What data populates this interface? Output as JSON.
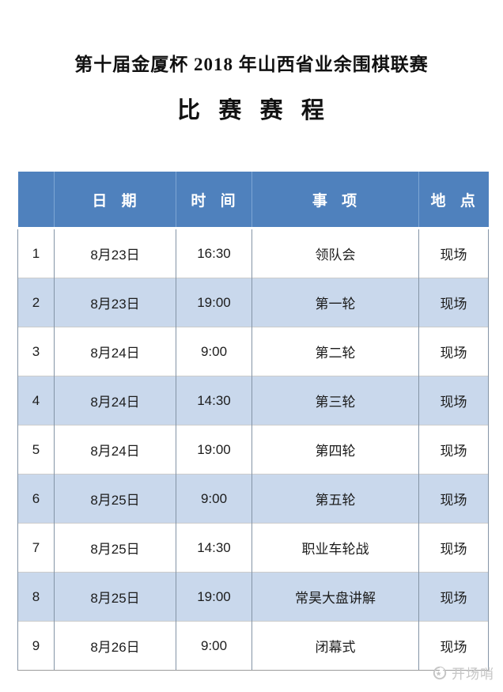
{
  "page": {
    "title": "第十届金厦杯 2018 年山西省业余围棋联赛",
    "subtitle": "比 赛 赛 程"
  },
  "table": {
    "headers": [
      "",
      "日 期",
      "时 间",
      "事 项",
      "地 点"
    ],
    "rows": [
      {
        "no": "1",
        "date": "8月23日",
        "time": "16:30",
        "event": "领队会",
        "location": "现场"
      },
      {
        "no": "2",
        "date": "8月23日",
        "time": "19:00",
        "event": "第一轮",
        "location": "现场"
      },
      {
        "no": "3",
        "date": "8月24日",
        "time": "9:00",
        "event": "第二轮",
        "location": "现场"
      },
      {
        "no": "4",
        "date": "8月24日",
        "time": "14:30",
        "event": "第三轮",
        "location": "现场"
      },
      {
        "no": "5",
        "date": "8月24日",
        "time": "19:00",
        "event": "第四轮",
        "location": "现场"
      },
      {
        "no": "6",
        "date": "8月25日",
        "time": "9:00",
        "event": "第五轮",
        "location": "现场"
      },
      {
        "no": "7",
        "date": "8月25日",
        "time": "14:30",
        "event": "职业车轮战",
        "location": "现场"
      },
      {
        "no": "8",
        "date": "8月25日",
        "time": "19:00",
        "event": "常昊大盘讲解",
        "location": "现场"
      },
      {
        "no": "9",
        "date": "8月26日",
        "time": "9:00",
        "event": "闭幕式",
        "location": "现场"
      }
    ]
  },
  "watermark": {
    "label": "开场哨",
    "icon": "whistle-icon"
  },
  "colors": {
    "header_bg": "#4f81bd",
    "header_text": "#ffffff",
    "row_alt_bg": "#c9d8ec",
    "body_text": "#1c1c1c",
    "column_rule": "#8494a6",
    "watermark_text": "#c6c6c6"
  }
}
